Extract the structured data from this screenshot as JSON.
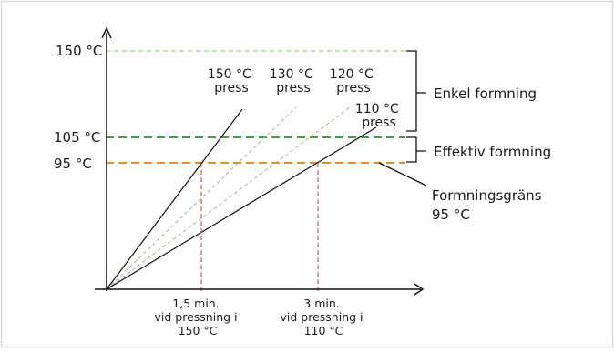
{
  "y_labels": {
    "t150": "150 °C",
    "t105": "105 °C",
    "t95": "95 °C"
  },
  "press_labels": {
    "p150": [
      "150 °C",
      "press"
    ],
    "p130": [
      "130 °C",
      "press"
    ],
    "p120": [
      "120 °C",
      "press"
    ],
    "p110": [
      "110 °C",
      "press"
    ]
  },
  "bracket_labels": {
    "enkel": "Enkel formning",
    "effektiv": "Effektiv formning"
  },
  "limit_label": [
    "Formningsgräns",
    "95 °C"
  ],
  "time_labels": {
    "t1": [
      "1,5 min.",
      "vid pressning i",
      "150 °C"
    ],
    "t2": [
      "3 min.",
      "vid pressning i",
      "110 °C"
    ]
  },
  "colors": {
    "frame": "#d9d9d9",
    "axis": "#111111",
    "solid_line": "#111111",
    "light_green": "#7fc86a",
    "green": "#3aa63a",
    "orange": "#f08c1e",
    "olive_dashed": "#a7b58a",
    "red": "#e0303a"
  }
}
